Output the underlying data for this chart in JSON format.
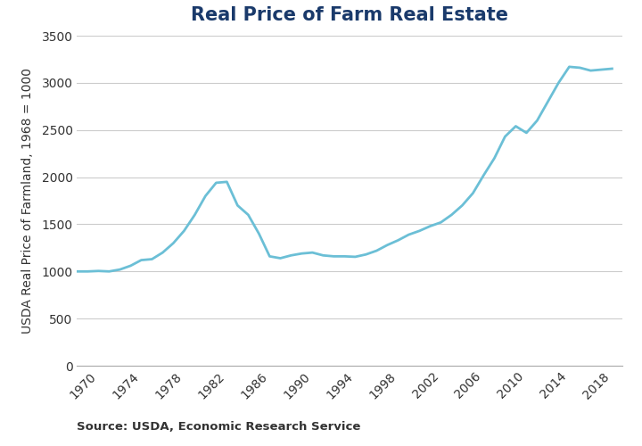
{
  "title": "Real Price of Farm Real Estate",
  "ylabel": "USDA Real Price of Farmland, 1968 = 1000",
  "source": "Source: USDA, Economic Research Service",
  "line_color": "#6bbfd6",
  "background_color": "#ffffff",
  "title_color": "#1a3a6b",
  "title_fontsize": 15,
  "ylabel_fontsize": 10,
  "source_fontsize": 9.5,
  "ylim": [
    0,
    3500
  ],
  "yticks": [
    0,
    500,
    1000,
    1500,
    2000,
    2500,
    3000,
    3500
  ],
  "xtick_years": [
    1970,
    1974,
    1978,
    1982,
    1986,
    1990,
    1994,
    1998,
    2002,
    2006,
    2010,
    2014,
    2018
  ],
  "xlim": [
    1968,
    2019
  ],
  "years": [
    1968,
    1969,
    1970,
    1971,
    1972,
    1973,
    1974,
    1975,
    1976,
    1977,
    1978,
    1979,
    1980,
    1981,
    1982,
    1983,
    1984,
    1985,
    1986,
    1987,
    1988,
    1989,
    1990,
    1991,
    1992,
    1993,
    1994,
    1995,
    1996,
    1997,
    1998,
    1999,
    2000,
    2001,
    2002,
    2003,
    2004,
    2005,
    2006,
    2007,
    2008,
    2009,
    2010,
    2011,
    2012,
    2013,
    2014,
    2015,
    2016,
    2017,
    2018
  ],
  "values": [
    1000,
    1000,
    1005,
    1000,
    1020,
    1060,
    1120,
    1130,
    1200,
    1300,
    1430,
    1600,
    1800,
    1940,
    1950,
    1700,
    1600,
    1400,
    1160,
    1140,
    1170,
    1190,
    1200,
    1170,
    1160,
    1160,
    1155,
    1180,
    1220,
    1280,
    1330,
    1390,
    1430,
    1480,
    1520,
    1600,
    1700,
    1830,
    2020,
    2200,
    2430,
    2540,
    2470,
    2600,
    2800,
    3000,
    3170,
    3160,
    3130,
    3140,
    3150
  ],
  "line_width": 2.0,
  "grid_color": "#cccccc",
  "grid_linewidth": 0.8,
  "tick_label_color": "#333333",
  "spine_color": "#aaaaaa"
}
